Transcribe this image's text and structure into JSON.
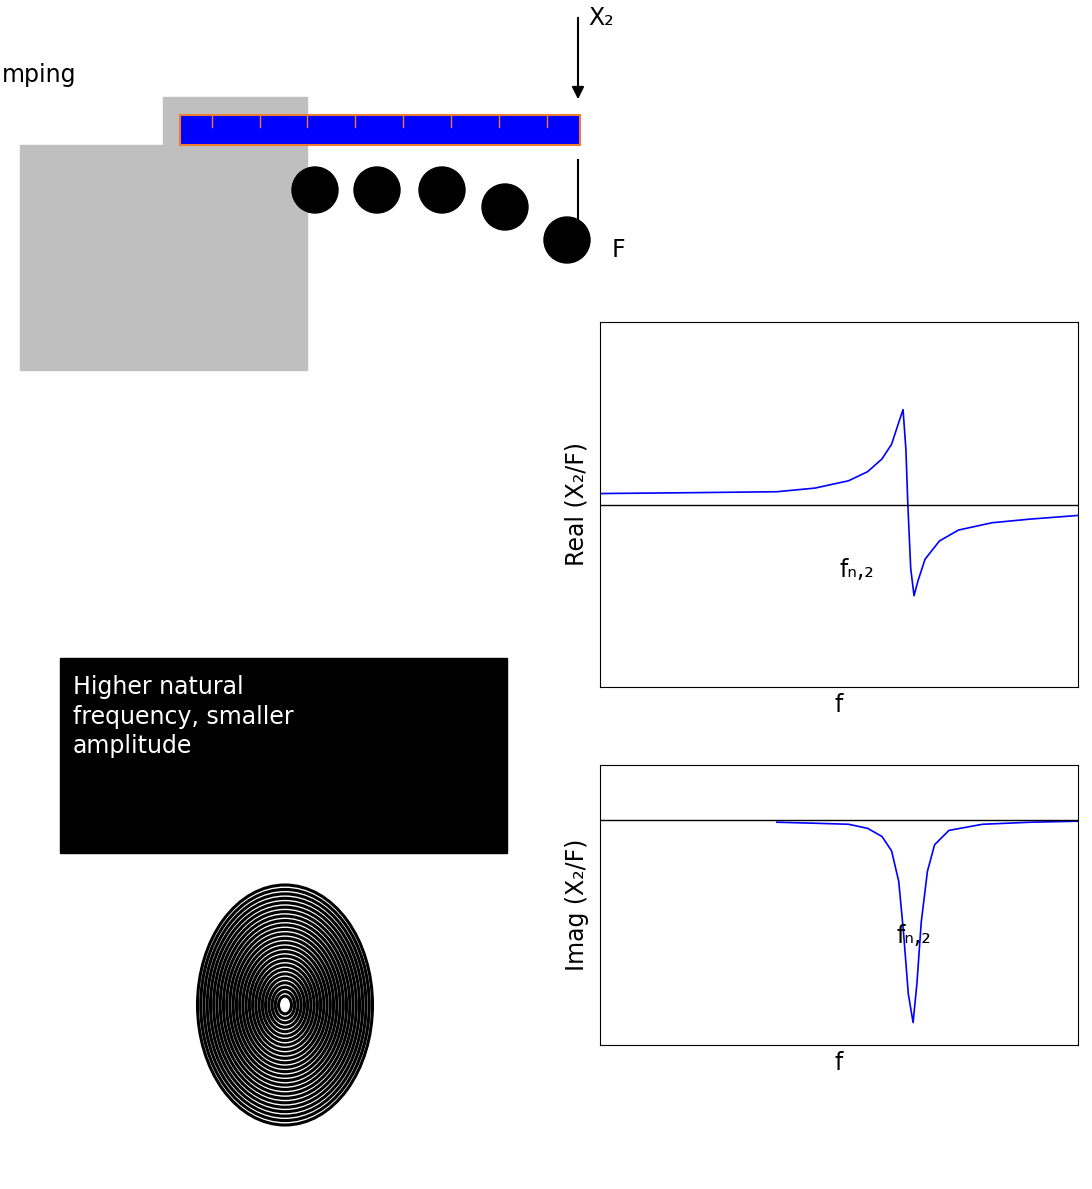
{
  "diagram": {
    "clamp_label": "mping",
    "displacement_label": "X₂",
    "force_label": "F",
    "note": [
      "Higher natural",
      "frequency, smaller",
      "amplitude"
    ]
  },
  "chart_data": [
    {
      "type": "line",
      "xlabel": "f",
      "ylabel": "Real (X₂/F)",
      "annotation": "fₙ,₂",
      "color": "#0000ff",
      "tick_labels": false,
      "baseline": 0,
      "xlim": [
        0,
        100
      ],
      "ylim": [
        -1,
        1
      ],
      "x": [
        0,
        20,
        37,
        45,
        52,
        56,
        59,
        61,
        62.5,
        63.4,
        64,
        64.4,
        65,
        65.7,
        66.5,
        68,
        71,
        75,
        82,
        90,
        100
      ],
      "values": [
        0.06,
        0.065,
        0.07,
        0.09,
        0.13,
        0.18,
        0.25,
        0.33,
        0.45,
        0.52,
        0.3,
        0,
        -0.35,
        -0.5,
        -0.42,
        -0.3,
        -0.2,
        -0.14,
        -0.1,
        -0.08,
        -0.06
      ]
    },
    {
      "type": "line",
      "xlabel": "f",
      "ylabel": "Imag (X₂/F)",
      "annotation": "fₙ,₂",
      "color": "#0000ff",
      "tick_labels": false,
      "baseline": 0,
      "xlim": [
        0,
        100
      ],
      "ylim": [
        -1.1,
        0.27
      ],
      "x": [
        37,
        45,
        52,
        56,
        59,
        61,
        62.5,
        63.5,
        64.5,
        65.5,
        66.3,
        67.2,
        68.5,
        70,
        73,
        80,
        90,
        100
      ],
      "values": [
        -0.01,
        -0.015,
        -0.02,
        -0.04,
        -0.08,
        -0.15,
        -0.3,
        -0.55,
        -0.85,
        -0.99,
        -0.8,
        -0.5,
        -0.25,
        -0.12,
        -0.05,
        -0.02,
        -0.01,
        -0.005
      ]
    }
  ]
}
